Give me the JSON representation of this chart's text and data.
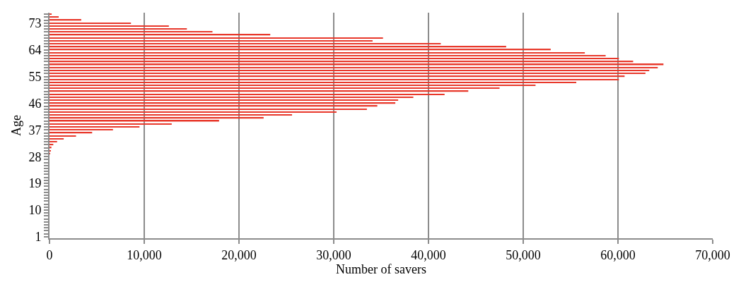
{
  "chart_data": {
    "type": "bar",
    "orientation": "horizontal",
    "xlabel": "Number of savers",
    "ylabel": "Age",
    "categories": [
      null,
      null,
      null,
      "73",
      null,
      null,
      null,
      null,
      null,
      null,
      null,
      null,
      "64",
      null,
      null,
      null,
      null,
      null,
      null,
      null,
      null,
      "55",
      null,
      null,
      null,
      null,
      null,
      null,
      null,
      null,
      "46",
      null,
      null,
      null,
      null,
      null,
      null,
      null,
      null,
      "37",
      null,
      null,
      null,
      null,
      null,
      null,
      null,
      null,
      "28",
      null,
      null,
      null,
      null,
      null,
      null,
      null,
      null,
      "19",
      null,
      null,
      null,
      null,
      null,
      null,
      null,
      null,
      "10",
      null,
      null,
      null,
      null,
      null,
      null,
      null,
      null,
      "1"
    ],
    "values": [
      230,
      970,
      3350,
      8600,
      12600,
      14500,
      17200,
      23300,
      35200,
      34100,
      41300,
      48200,
      52900,
      56500,
      58700,
      60100,
      61600,
      64800,
      64200,
      63300,
      62900,
      60700,
      60100,
      55600,
      51300,
      47500,
      44200,
      41700,
      38400,
      36800,
      36500,
      34600,
      33500,
      30300,
      25600,
      22600,
      17900,
      12900,
      9500,
      6700,
      4500,
      2800,
      1500,
      800,
      400,
      200,
      150,
      50,
      0,
      0,
      0,
      0,
      0,
      0,
      0,
      0,
      0,
      0,
      0,
      0,
      0,
      0,
      0,
      0,
      0,
      0,
      0,
      0,
      0,
      0,
      0,
      0,
      0,
      0,
      0,
      0
    ],
    "color": "#e8382b",
    "xlim": [
      0,
      70000
    ],
    "xticks": [
      {
        "value": 0,
        "label": "0"
      },
      {
        "value": 10000,
        "label": "10,000"
      },
      {
        "value": 20000,
        "label": "20,000"
      },
      {
        "value": 30000,
        "label": "30,000"
      },
      {
        "value": 40000,
        "label": "40,000"
      },
      {
        "value": 50000,
        "label": "50,000"
      },
      {
        "value": 60000,
        "label": "60,000"
      },
      {
        "value": 70000,
        "label": "70,000"
      }
    ],
    "grid": "x"
  }
}
